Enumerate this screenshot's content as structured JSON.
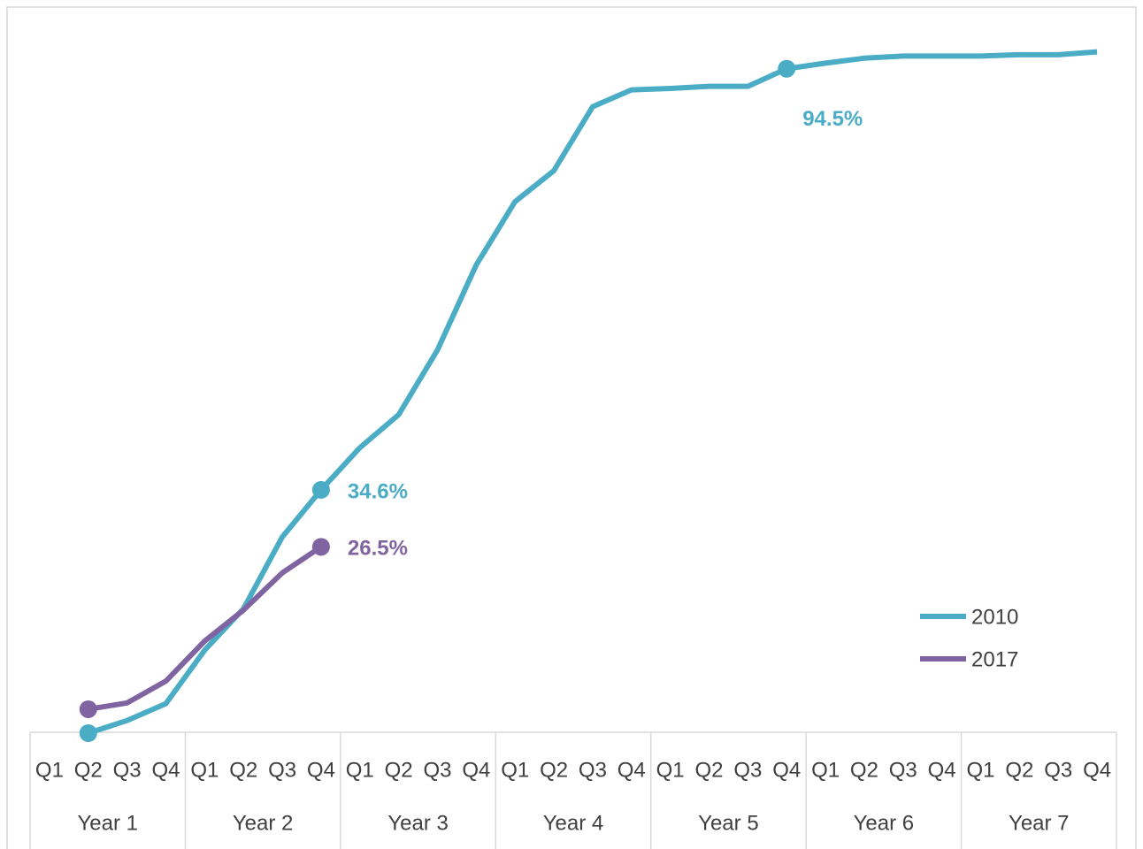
{
  "chart_data": {
    "type": "line",
    "categories": [
      "Q1",
      "Q2",
      "Q3",
      "Q4",
      "Q1",
      "Q2",
      "Q3",
      "Q4",
      "Q1",
      "Q2",
      "Q3",
      "Q4",
      "Q1",
      "Q2",
      "Q3",
      "Q4",
      "Q1",
      "Q2",
      "Q3",
      "Q4",
      "Q1",
      "Q2",
      "Q3",
      "Q4",
      "Q1",
      "Q2",
      "Q3",
      "Q4"
    ],
    "category_groups": [
      "Year 1",
      "Year 2",
      "Year 3",
      "Year 4",
      "Year 5",
      "Year 6",
      "Year 7"
    ],
    "ylim": [
      0,
      100
    ],
    "legend": "lower right",
    "series": [
      {
        "name": "2010",
        "color": "#4bacc6",
        "values": [
          null,
          0,
          1.8,
          4.2,
          11.8,
          17.7,
          27.9,
          34.6,
          40.6,
          45.3,
          54.5,
          66.6,
          75.6,
          80.0,
          89.1,
          91.5,
          91.7,
          92.0,
          92.0,
          94.5,
          95.3,
          96.0,
          96.3,
          96.3,
          96.3,
          96.5,
          96.5,
          96.9
        ],
        "value_labels": [
          null,
          null,
          null,
          null,
          null,
          null,
          null,
          "34.6%",
          null,
          null,
          null,
          null,
          null,
          null,
          null,
          null,
          null,
          null,
          null,
          "94.5%",
          null,
          null,
          null,
          null,
          null,
          null,
          null,
          null
        ]
      },
      {
        "name": "2017",
        "color": "#8064a2",
        "values": [
          null,
          3.4,
          4.3,
          7.4,
          13.1,
          17.5,
          22.8,
          26.5,
          null,
          null,
          null,
          null,
          null,
          null,
          null,
          null,
          null,
          null,
          null,
          null,
          null,
          null,
          null,
          null,
          null,
          null,
          null,
          null
        ],
        "value_labels": [
          null,
          null,
          null,
          null,
          null,
          null,
          null,
          "26.5%",
          null,
          null,
          null,
          null,
          null,
          null,
          null,
          null,
          null,
          null,
          null,
          null,
          null,
          null,
          null,
          null,
          null,
          null,
          null,
          null
        ]
      }
    ]
  }
}
